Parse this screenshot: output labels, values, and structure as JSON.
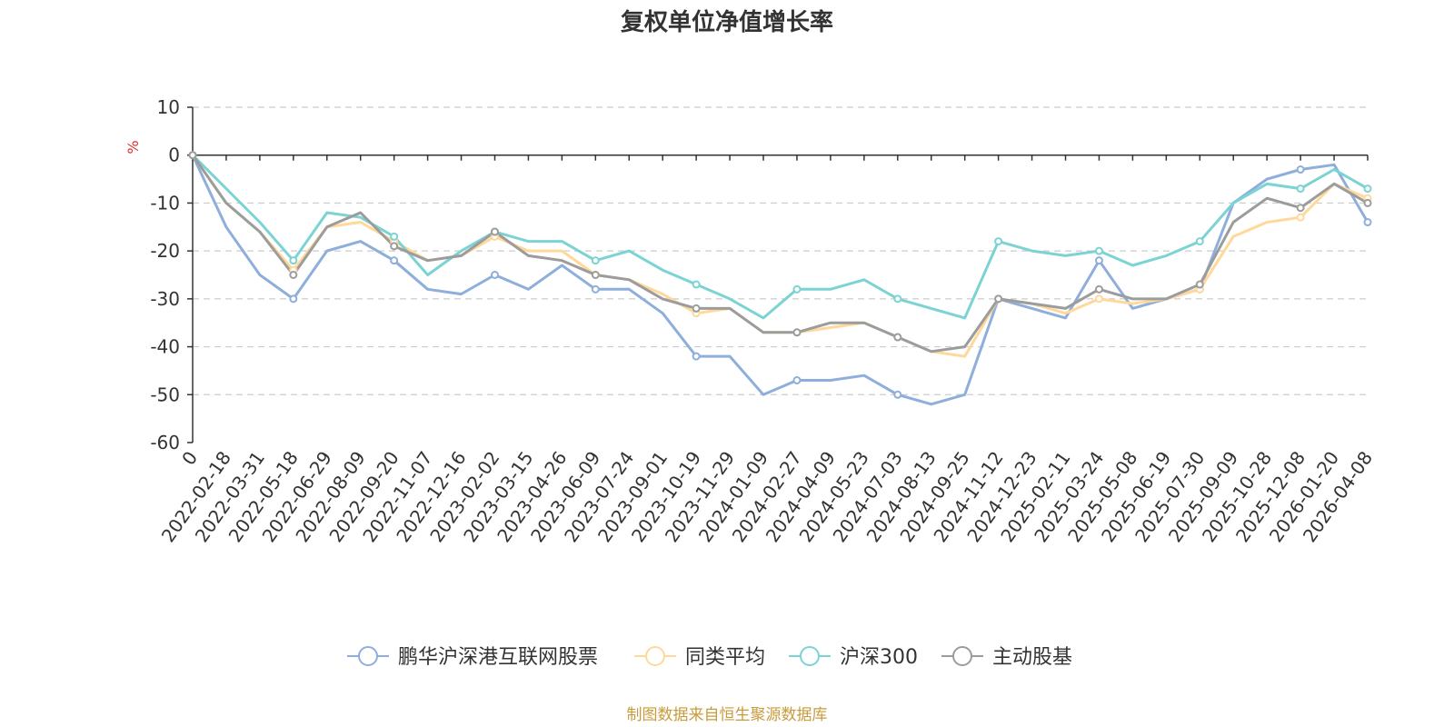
{
  "chart_data": {
    "type": "line",
    "title": "复权单位净值增长率",
    "ylabel": "%",
    "ylim": [
      -60,
      10
    ],
    "yticks": [
      "10",
      "0",
      "-10",
      "-20",
      "-30",
      "-40",
      "-50",
      "-60"
    ],
    "categories": [
      "0",
      "2022-02-18",
      "2022-03-31",
      "2022-05-18",
      "2022-06-29",
      "2022-08-09",
      "2022-09-20",
      "2022-11-07",
      "2022-12-16",
      "2023-02-02",
      "2023-03-15",
      "2023-04-26",
      "2023-06-09",
      "2023-07-24",
      "2023-09-01",
      "2023-10-19",
      "2023-11-29",
      "2024-01-09",
      "2024-02-27",
      "2024-04-09",
      "2024-05-23",
      "2024-07-03",
      "2024-08-13",
      "2024-09-25",
      "2024-11-12",
      "2024-12-23",
      "2025-02-11",
      "2025-03-24",
      "2025-05-08",
      "2025-06-19",
      "2025-07-30",
      "2025-09-09",
      "2025-10-28",
      "2025-12-08",
      "2026-01-20",
      "2026-04-08"
    ],
    "series": [
      {
        "name": "鹏华沪深港互联网股票",
        "color": "#8eaedb",
        "values": [
          0,
          -15,
          -25,
          -30,
          -20,
          -18,
          -22,
          -28,
          -29,
          -25,
          -28,
          -23,
          -28,
          -28,
          -33,
          -42,
          -42,
          -50,
          -47,
          -47,
          -46,
          -50,
          -52,
          -50,
          -30,
          -32,
          -34,
          -22,
          -32,
          -30,
          -28,
          -10,
          -5,
          -3,
          -2,
          -14
        ]
      },
      {
        "name": "同类平均",
        "color": "#ffd89a",
        "values": [
          0,
          -10,
          -16,
          -24,
          -15,
          -14,
          -18,
          -22,
          -21,
          -17,
          -20,
          -20,
          -25,
          -26,
          -29,
          -33,
          -32,
          -37,
          -37,
          -36,
          -35,
          -38,
          -41,
          -42,
          -30,
          -31,
          -33,
          -30,
          -31,
          -30,
          -28,
          -17,
          -14,
          -13,
          -6,
          -9
        ]
      },
      {
        "name": "沪深300",
        "color": "#7cd3d3",
        "values": [
          0,
          -7,
          -14,
          -22,
          -12,
          -13,
          -17,
          -25,
          -20,
          -16,
          -18,
          -18,
          -22,
          -20,
          -24,
          -27,
          -30,
          -34,
          -28,
          -28,
          -26,
          -30,
          -32,
          -34,
          -18,
          -20,
          -21,
          -20,
          -23,
          -21,
          -18,
          -10,
          -6,
          -7,
          -3,
          -7
        ]
      },
      {
        "name": "主动股基",
        "color": "#9c9c9c",
        "values": [
          0,
          -10,
          -16,
          -25,
          -15,
          -12,
          -19,
          -22,
          -21,
          -16,
          -21,
          -22,
          -25,
          -26,
          -30,
          -32,
          -32,
          -37,
          -37,
          -35,
          -35,
          -38,
          -41,
          -40,
          -30,
          -31,
          -32,
          -28,
          -30,
          -30,
          -27,
          -14,
          -9,
          -11,
          -6,
          -10
        ]
      }
    ]
  },
  "legend": {
    "items": [
      "鹏华沪深港互联网股票",
      "同类平均",
      "沪深300",
      "主动股基"
    ]
  },
  "footer": {
    "source": "制图数据来自恒生聚源数据库"
  }
}
